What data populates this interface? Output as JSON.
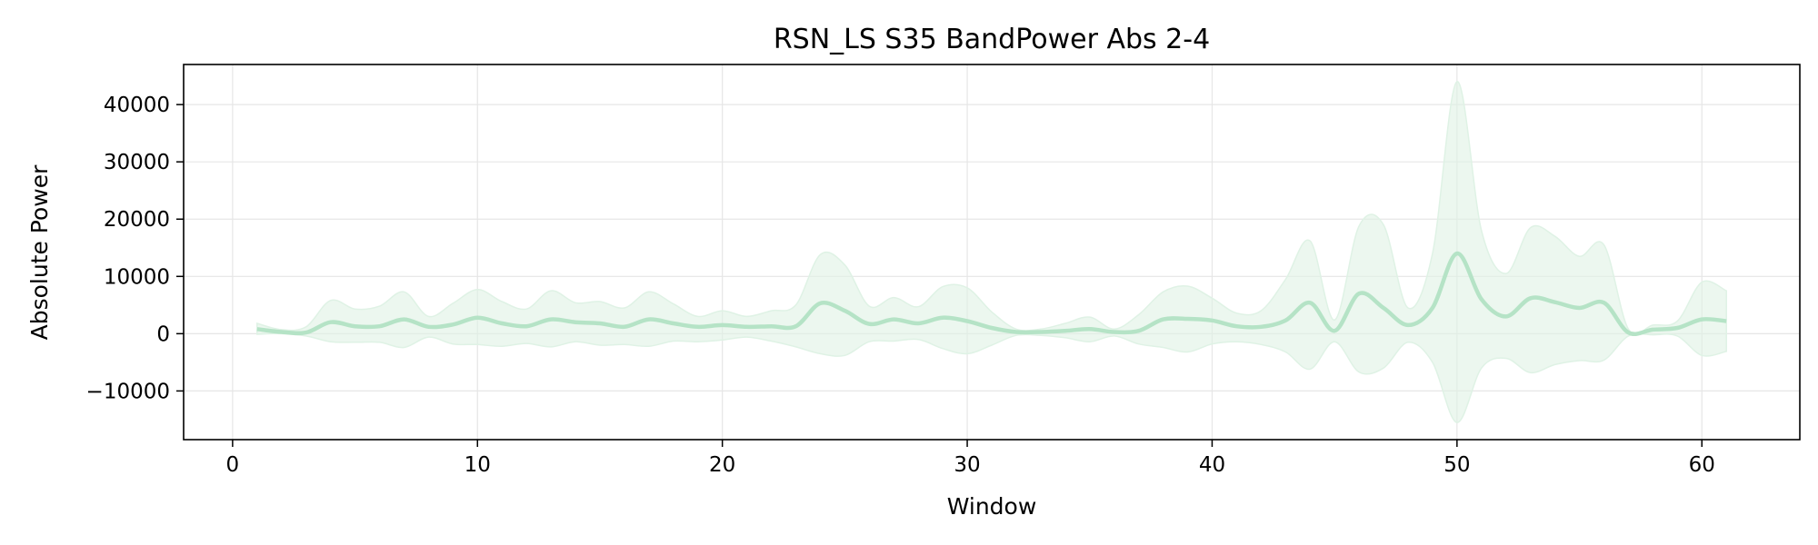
{
  "chart_data": {
    "type": "line",
    "title": "RSN_LS S35 BandPower Abs 2-4",
    "xlabel": "Window",
    "ylabel": "Absolute Power",
    "xlim": [
      -2,
      64
    ],
    "ylim": [
      -18500,
      47000
    ],
    "xticks": [
      0,
      10,
      20,
      30,
      40,
      50,
      60
    ],
    "yticks": [
      -10000,
      0,
      10000,
      20000,
      30000,
      40000
    ],
    "ytick_labels": [
      "−10000",
      "0",
      "10000",
      "20000",
      "30000",
      "40000"
    ],
    "grid": true,
    "legend": "none",
    "colors": {
      "line": "#b5e3c6",
      "band": "#dff2e5",
      "grid": "#e6e6e6",
      "axes": "#000000"
    },
    "series": [
      {
        "x": [
          1,
          2,
          3,
          4,
          5,
          6,
          7,
          8,
          9,
          10,
          11,
          12,
          13,
          14,
          15,
          16,
          17,
          18,
          19,
          20,
          21,
          22,
          23,
          24,
          25,
          26,
          27,
          28,
          29,
          30,
          31,
          32,
          33,
          34,
          35,
          36,
          37,
          38,
          39,
          40,
          41,
          42,
          43,
          44,
          45,
          46,
          47,
          48,
          49,
          50,
          51,
          52,
          53,
          54,
          55,
          56,
          57,
          58,
          59,
          60,
          61
        ],
        "mean": [
          800,
          300,
          200,
          2000,
          1300,
          1300,
          2500,
          1200,
          1600,
          2800,
          1800,
          1300,
          2500,
          2000,
          1800,
          1200,
          2500,
          1800,
          1200,
          1500,
          1200,
          1300,
          1300,
          5300,
          4000,
          1700,
          2500,
          1800,
          2800,
          2200,
          1000,
          300,
          300,
          500,
          800,
          300,
          500,
          2500,
          2600,
          2300,
          1300,
          1200,
          2300,
          5400,
          500,
          7000,
          4500,
          1500,
          4500,
          14000,
          6000,
          3000,
          6200,
          5500,
          4500,
          5400,
          200,
          700,
          1000,
          2500,
          2200
        ],
        "upper": [
          1800,
          700,
          1200,
          5800,
          4300,
          4800,
          7300,
          3000,
          5300,
          7700,
          5600,
          4300,
          7500,
          5400,
          5600,
          4500,
          7300,
          5200,
          3000,
          4000,
          3000,
          4000,
          5000,
          13800,
          12000,
          4800,
          6300,
          4700,
          8200,
          8000,
          3800,
          800,
          800,
          1800,
          2900,
          800,
          3300,
          7300,
          8300,
          6200,
          3600,
          4000,
          9500,
          16200,
          2400,
          18800,
          19000,
          4500,
          14000,
          44000,
          18000,
          10500,
          18500,
          17000,
          13500,
          15500,
          800,
          1500,
          2200,
          9000,
          7500
        ],
        "lower": [
          -100,
          0,
          -400,
          -1400,
          -1500,
          -1500,
          -2400,
          -600,
          -1800,
          -1900,
          -2200,
          -1700,
          -2300,
          -1400,
          -2000,
          -1900,
          -2200,
          -1300,
          -1400,
          -1100,
          -600,
          -1300,
          -2300,
          -3500,
          -3800,
          -1400,
          -1300,
          -1000,
          -2600,
          -3500,
          -2000,
          -300,
          -300,
          -700,
          -1400,
          -400,
          -1800,
          -2400,
          -3200,
          -1800,
          -1400,
          -1900,
          -3200,
          -6200,
          -1400,
          -6700,
          -6000,
          -1500,
          -5000,
          -15500,
          -6000,
          -4300,
          -6800,
          -5400,
          -4700,
          -4600,
          -400,
          -200,
          -400,
          -3800,
          -3100
        ]
      }
    ]
  }
}
